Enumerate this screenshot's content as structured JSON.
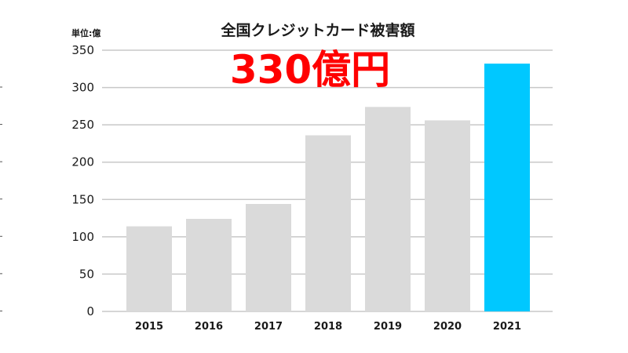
{
  "chart_data": {
    "type": "bar",
    "title": "全国クレジットカード被害額",
    "unit_label": "単位:億",
    "highlight_text": "330億円",
    "categories": [
      "2015",
      "2016",
      "2017",
      "2018",
      "2019",
      "2020",
      "2021"
    ],
    "values": [
      114,
      124,
      144,
      236,
      274,
      256,
      332
    ],
    "ylim": [
      0,
      350
    ],
    "yticks": [
      0,
      50,
      100,
      150,
      200,
      250,
      300,
      350
    ],
    "grid": true,
    "highlight_index": 6
  },
  "colors": {
    "bar": "#dadada",
    "bar_highlight": "#00c8ff",
    "highlight_text": "#ff0000"
  }
}
